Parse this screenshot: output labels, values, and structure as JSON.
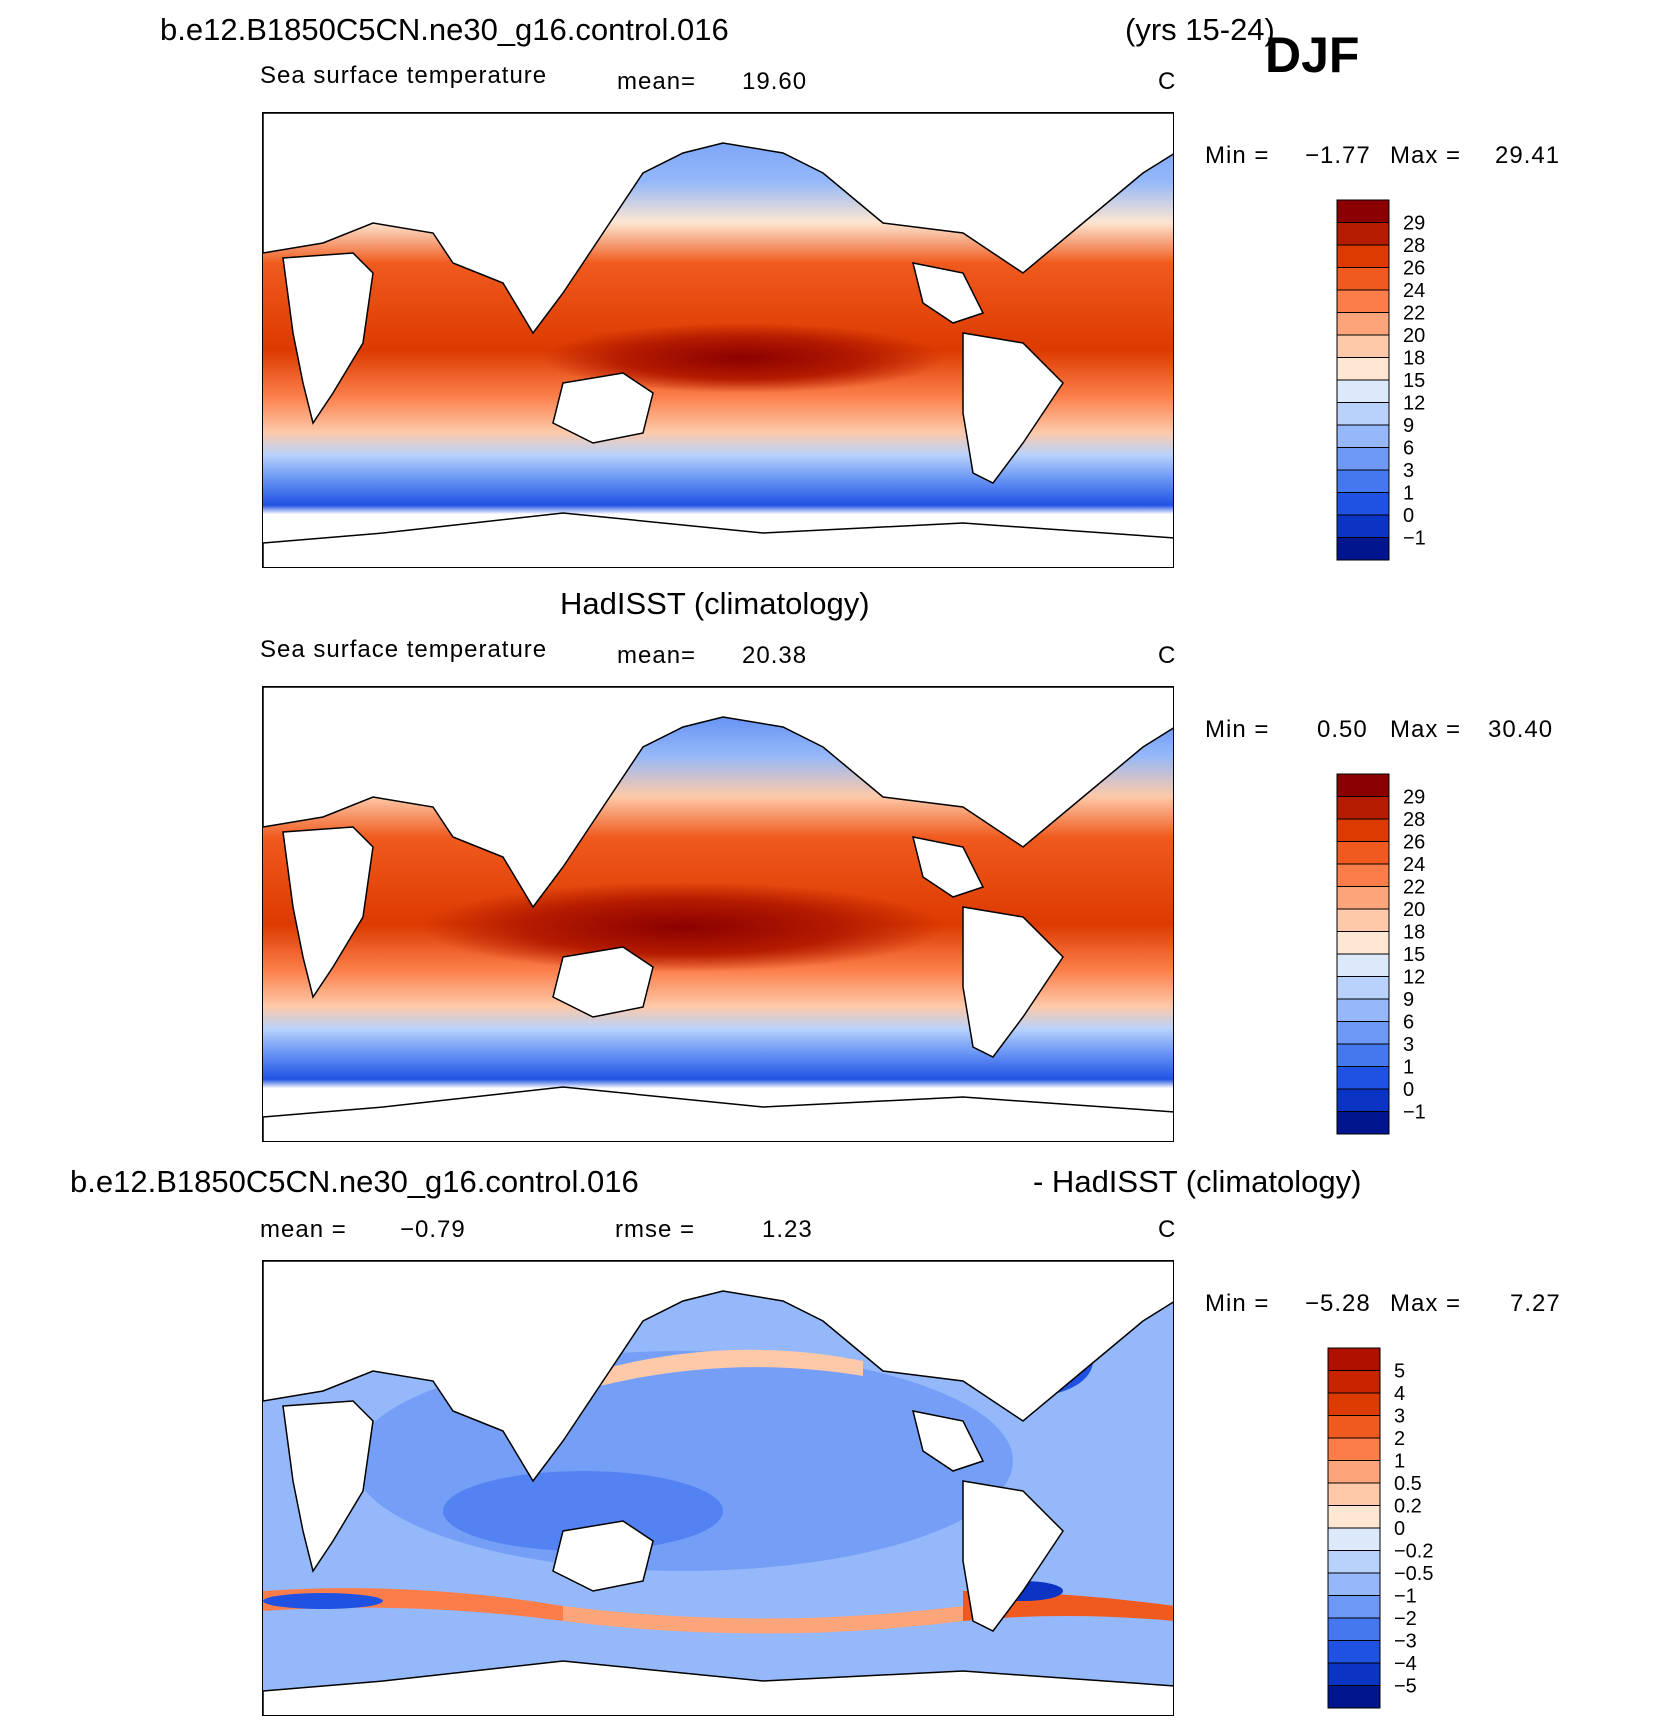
{
  "header": {
    "case": "b.e12.B1850C5CN.ne30_g16.control.016",
    "years": "(yrs 15-24)",
    "season": "DJF"
  },
  "panel1": {
    "subtitle": "Sea surface temperature",
    "mean_label": "mean=",
    "mean_value": "19.60",
    "units": "C",
    "min_label": "Min =",
    "min_value": "−1.77",
    "max_label": "Max =",
    "max_value": "29.41"
  },
  "panel2": {
    "title": "HadISST (climatology)",
    "subtitle": "Sea surface temperature",
    "mean_label": "mean=",
    "mean_value": "20.38",
    "units": "C",
    "min_label": "Min =",
    "min_value": "0.50",
    "max_label": "Max =",
    "max_value": "30.40"
  },
  "panel3": {
    "title_left": "b.e12.B1850C5CN.ne30_g16.control.016",
    "title_right": "- HadISST (climatology)",
    "mean_label": "mean =",
    "mean_value": "−0.79",
    "rmse_label": "rmse =",
    "rmse_value": "1.23",
    "units": "C",
    "min_label": "Min =",
    "min_value": "−5.28",
    "max_label": "Max =",
    "max_value": "7.27"
  },
  "colorbar_sst": {
    "labels": [
      "29",
      "28",
      "26",
      "24",
      "22",
      "20",
      "18",
      "15",
      "12",
      "9",
      "6",
      "3",
      "1",
      "0",
      "−1"
    ],
    "colors": [
      "#8b0000",
      "#b41b00",
      "#dc3a00",
      "#f05a1e",
      "#fb7e4a",
      "#fca47a",
      "#fdc9a9",
      "#fde6d2",
      "#dbe9fb",
      "#b8d2fb",
      "#94b8f9",
      "#6d98f6",
      "#4577ef",
      "#1f52e3",
      "#0a34c4",
      "#00158e"
    ]
  },
  "colorbar_diff": {
    "labels": [
      "5",
      "4",
      "3",
      "2",
      "1",
      "0.5",
      "0.2",
      "0",
      "−0.2",
      "−0.5",
      "−1",
      "−2",
      "−3",
      "−4",
      "−5"
    ],
    "colors": [
      "#b01000",
      "#c82400",
      "#dc3a00",
      "#f05a1e",
      "#fb7e4a",
      "#fca47a",
      "#fdc9a9",
      "#fde6d2",
      "#dbe9fb",
      "#b8d2fb",
      "#94b8f9",
      "#6d98f6",
      "#4577ef",
      "#1f52e3",
      "#0a34c4",
      "#00158e"
    ]
  }
}
